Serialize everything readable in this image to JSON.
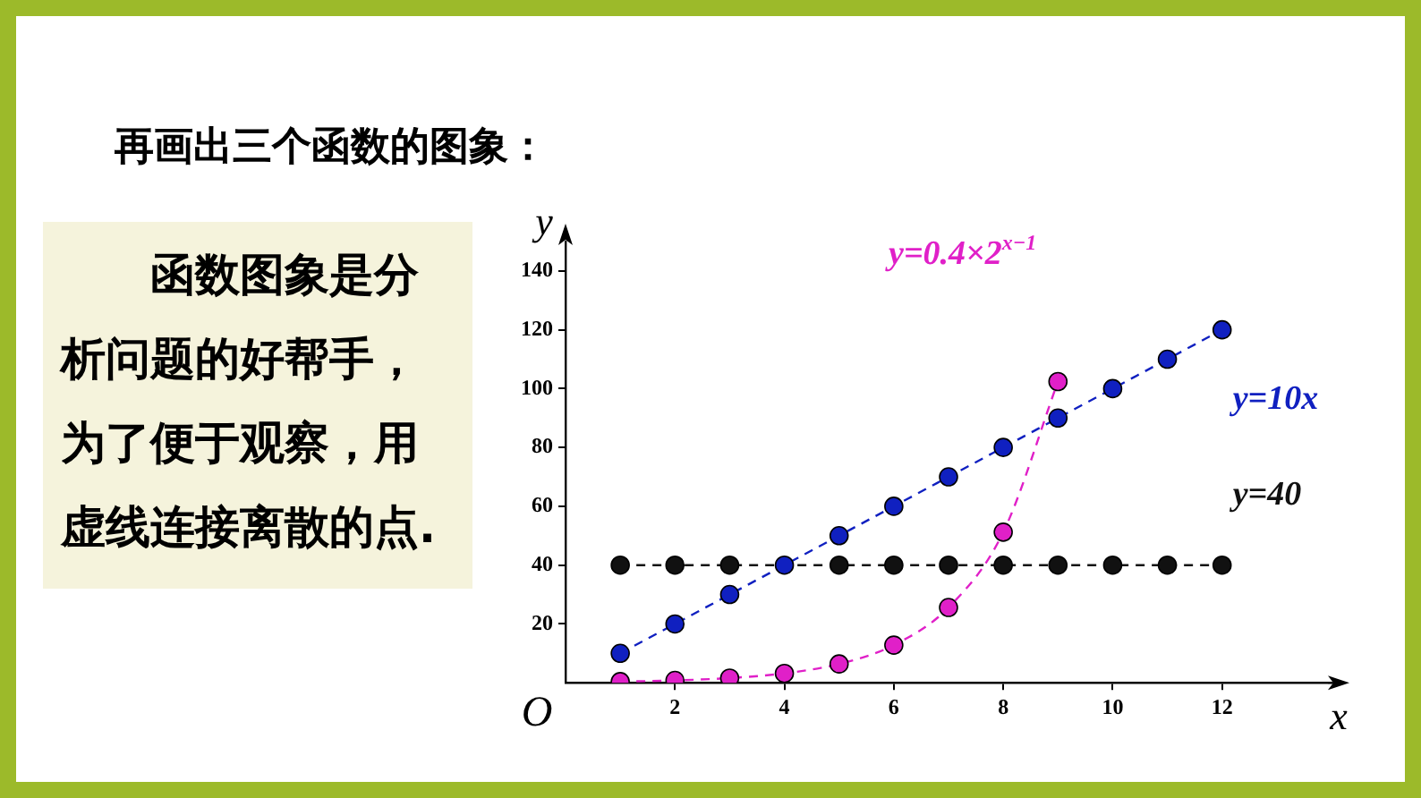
{
  "chart_data": {
    "type": "line",
    "title": "再画出三个函数的图象：",
    "xlabel": "x",
    "ylabel": "y",
    "annotations": [
      "函数图象是分析问题的好帮手，为了便于观察，用虚线连接离散的点.",
      "O"
    ],
    "xlim": [
      0,
      14
    ],
    "ylim": [
      0,
      150
    ],
    "xticks": [
      2,
      4,
      6,
      8,
      10,
      12
    ],
    "yticks": [
      20,
      40,
      60,
      80,
      100,
      120,
      140
    ],
    "grid": false,
    "legend": false,
    "marker": "circle",
    "line_style": "dashed",
    "series": [
      {
        "name": "y=0.4×2$^{x−1}$",
        "color": "#e020c8",
        "x": [
          1,
          2,
          3,
          4,
          5,
          6,
          7,
          8,
          9
        ],
        "values": [
          0.4,
          0.8,
          1.6,
          3.2,
          6.4,
          12.8,
          25.6,
          51.2,
          102.4
        ]
      },
      {
        "name": "y=10x",
        "color": "#1020c0",
        "x": [
          1,
          2,
          3,
          4,
          5,
          6,
          7,
          8,
          9,
          10,
          11,
          12
        ],
        "values": [
          10,
          20,
          30,
          40,
          50,
          60,
          70,
          80,
          90,
          100,
          110,
          120
        ]
      },
      {
        "name": "y=40",
        "color": "#111111",
        "x": [
          1,
          2,
          3,
          4,
          5,
          6,
          7,
          8,
          9,
          10,
          11,
          12
        ],
        "values": [
          40,
          40,
          40,
          null,
          40,
          40,
          40,
          40,
          40,
          40,
          40,
          40
        ]
      }
    ]
  }
}
